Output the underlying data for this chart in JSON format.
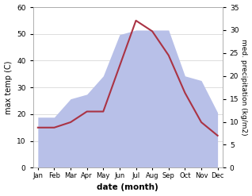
{
  "months": [
    "Jan",
    "Feb",
    "Mar",
    "Apr",
    "May",
    "Jun",
    "Jul",
    "Aug",
    "Sep",
    "Oct",
    "Nov",
    "Dec"
  ],
  "month_indices": [
    0,
    1,
    2,
    3,
    4,
    5,
    6,
    7,
    8,
    9,
    10,
    11
  ],
  "temp": [
    15,
    15,
    17,
    21,
    21,
    38,
    55,
    51,
    42,
    28,
    17,
    12
  ],
  "precip_right": [
    11,
    11,
    15,
    16,
    20,
    29,
    30,
    30,
    30,
    20,
    19,
    12
  ],
  "temp_color": "#aa3344",
  "precip_color": "#b8c0e8",
  "ylim_left": [
    0,
    60
  ],
  "ylim_right": [
    0,
    35
  ],
  "ylabel_left": "max temp (C)",
  "ylabel_right": "med. precipitation (kg/m2)",
  "xlabel": "date (month)",
  "temp_linewidth": 1.5,
  "bg_color": "#ffffff",
  "grid_color": "#d0d0d0",
  "right_yticks": [
    0,
    5,
    10,
    15,
    20,
    25,
    30,
    35
  ],
  "left_yticks": [
    0,
    10,
    20,
    30,
    40,
    50,
    60
  ]
}
